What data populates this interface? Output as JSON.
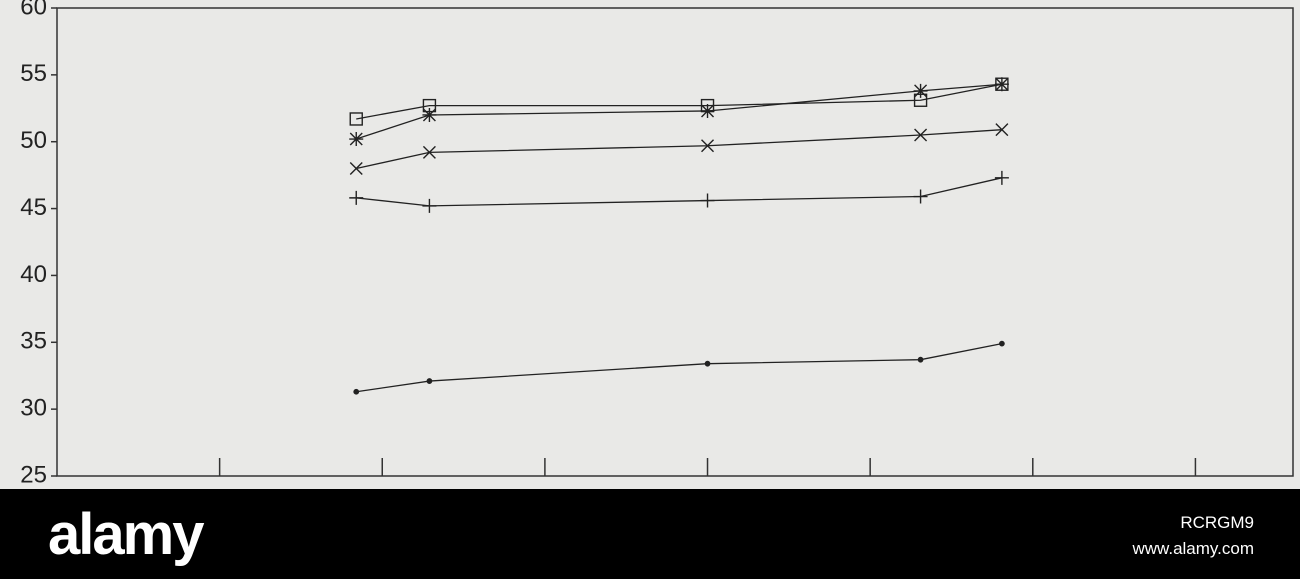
{
  "chart_data": {
    "type": "line",
    "xlim": [
      0,
      7.6
    ],
    "xticks": [
      1,
      2,
      3,
      4,
      5,
      6,
      7
    ],
    "ylim": [
      25,
      60
    ],
    "yticks": [
      25,
      30,
      35,
      40,
      45,
      50,
      55,
      60
    ],
    "x": [
      1.84,
      2.29,
      4.0,
      5.31,
      5.81
    ],
    "series": [
      {
        "color": "#222222",
        "marker": "square",
        "values": [
          51.7,
          52.7,
          52.7,
          53.1,
          54.3
        ]
      },
      {
        "color": "#222222",
        "marker": "asterisk",
        "values": [
          50.2,
          52.0,
          52.3,
          53.8,
          54.3
        ]
      },
      {
        "color": "#222222",
        "marker": "x",
        "values": [
          48.0,
          49.2,
          49.7,
          50.5,
          50.9
        ]
      },
      {
        "color": "#222222",
        "marker": "plus",
        "values": [
          45.8,
          45.2,
          45.6,
          45.9,
          47.3
        ]
      },
      {
        "color": "#222222",
        "marker": "dot",
        "values": [
          31.3,
          32.1,
          33.4,
          33.7,
          34.9
        ]
      }
    ]
  },
  "watermark": {
    "brand": "alamy",
    "id": "RCRGM9",
    "url": "www.alamy.com"
  }
}
